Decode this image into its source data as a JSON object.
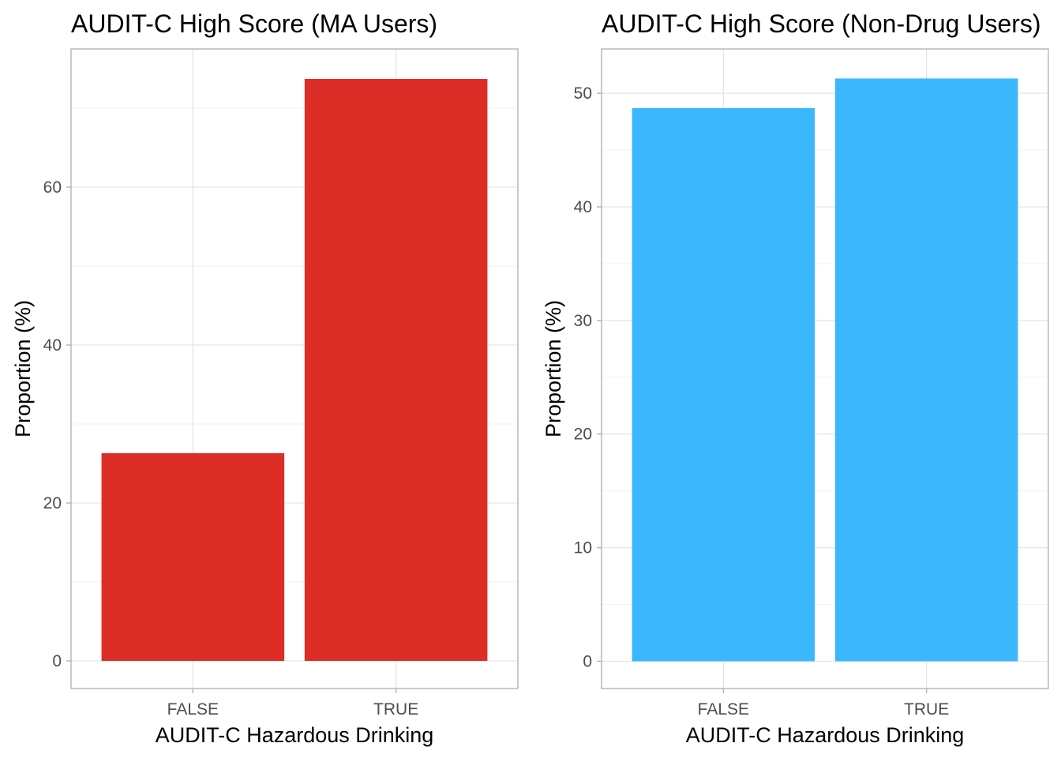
{
  "chart_data": [
    {
      "type": "bar",
      "title": "AUDIT-C High Score (MA Users)",
      "xlabel": "AUDIT-C Hazardous Drinking",
      "ylabel": "Proportion (%)",
      "categories": [
        "FALSE",
        "TRUE"
      ],
      "values": [
        26.3,
        73.7
      ],
      "ylim": [
        -3.5,
        77.5
      ],
      "yticks": [
        0,
        20,
        40,
        60
      ],
      "grid": true,
      "color": "#dc2d27"
    },
    {
      "type": "bar",
      "title": "AUDIT-C High Score (Non-Drug Users)",
      "xlabel": "AUDIT-C Hazardous Drinking",
      "ylabel": "Proportion (%)",
      "categories": [
        "FALSE",
        "TRUE"
      ],
      "values": [
        48.7,
        51.3
      ],
      "ylim": [
        -2.4,
        53.9
      ],
      "yticks": [
        0,
        10,
        20,
        30,
        40,
        50
      ],
      "grid": true,
      "color": "#3bb8fd"
    }
  ]
}
